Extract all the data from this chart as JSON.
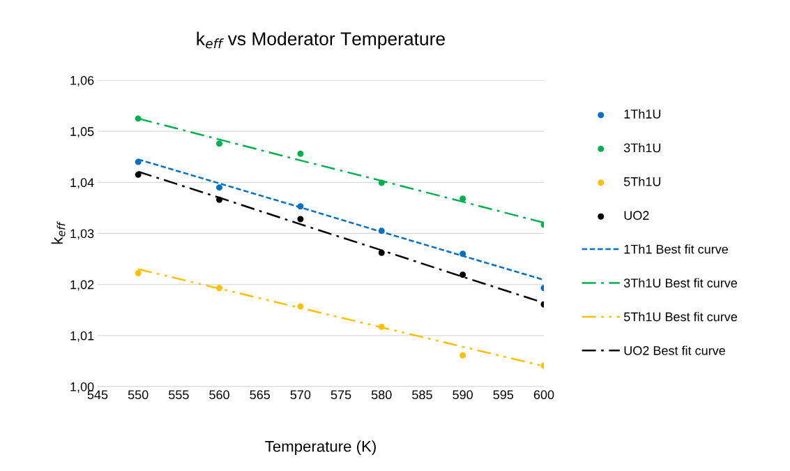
{
  "chart_data": {
    "type": "scatter",
    "title": "k$_{eff}$ vs Moderator Temperature",
    "xlabel": "Temperature (K)",
    "ylabel": "k$_{eff}$",
    "x": [
      550,
      560,
      570,
      580,
      590,
      600
    ],
    "series": [
      {
        "name": "1Th1U",
        "color": "#0070c0",
        "values": [
          1.044,
          1.039,
          1.0353,
          1.0305,
          1.026,
          1.0193
        ]
      },
      {
        "name": "3Th1U",
        "color": "#00b050",
        "values": [
          1.0525,
          1.0476,
          1.0456,
          1.0399,
          1.0368,
          1.0317
        ]
      },
      {
        "name": "5Th1U",
        "color": "#ffc000",
        "values": [
          1.0222,
          1.0193,
          1.0157,
          1.0117,
          1.0061,
          1.0041
        ]
      },
      {
        "name": "UO2",
        "color": "#000000",
        "values": [
          1.0415,
          1.0366,
          1.0328,
          1.0262,
          1.0219,
          1.0161
        ]
      },
      {
        "name": "1Th1 Best fit curve",
        "type": "line",
        "line_style": "dashed",
        "marker": "none",
        "color": "#0070c0",
        "values": [
          1.0445,
          1.0398,
          1.0351,
          1.0303,
          1.0256,
          1.0209
        ]
      },
      {
        "name": "3Th1U Best fit curve",
        "type": "line",
        "line_style": "dashdot",
        "marker": "none",
        "color": "#00b050",
        "values": [
          1.0525,
          1.0484,
          1.0443,
          1.0403,
          1.0362,
          1.0321
        ]
      },
      {
        "name": "5Th1U Best fit curve",
        "type": "line",
        "line_style": "dashdotdot",
        "marker": "none",
        "color": "#ffc000",
        "values": [
          1.023,
          1.0192,
          1.0154,
          1.0116,
          1.0078,
          1.004
        ]
      },
      {
        "name": "UO2 Best fit curve",
        "type": "line",
        "line_style": "dashdot",
        "marker": "none",
        "color": "#000000",
        "values": [
          1.0421,
          1.037,
          1.0318,
          1.0267,
          1.0215,
          1.0164
        ]
      }
    ],
    "marker": "circle",
    "xlim": [
      545,
      600
    ],
    "xticks": [
      545,
      550,
      555,
      560,
      565,
      570,
      575,
      580,
      585,
      590,
      595,
      600
    ],
    "ylim": [
      1.0,
      1.06
    ],
    "yticks": [
      {
        "value": 1.0,
        "label": "1,00"
      },
      {
        "value": 1.01,
        "label": "1,01"
      },
      {
        "value": 1.02,
        "label": "1,02"
      },
      {
        "value": 1.03,
        "label": "1,03"
      },
      {
        "value": 1.04,
        "label": "1,04"
      },
      {
        "value": 1.05,
        "label": "1,05"
      },
      {
        "value": 1.06,
        "label": "1,06"
      }
    ],
    "grid": "y",
    "legend": "right"
  }
}
